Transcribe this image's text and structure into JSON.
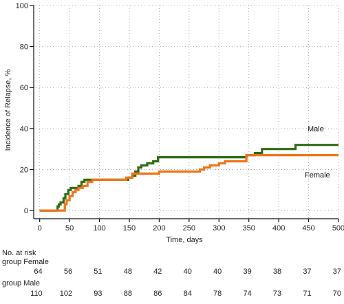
{
  "chart_data": {
    "type": "line",
    "xlabel": "Time, days",
    "ylabel": "Incidence of Relapse, %",
    "xlim": [
      -10,
      500
    ],
    "ylim": [
      -4,
      100
    ],
    "xticks": [
      0,
      50,
      100,
      150,
      200,
      250,
      300,
      350,
      400,
      450,
      500
    ],
    "yticks": [
      0,
      20,
      40,
      60,
      80,
      100
    ],
    "grid": true,
    "series": [
      {
        "name": "Male",
        "color": "#2e6b13",
        "step": true,
        "points": [
          [
            0,
            0
          ],
          [
            25,
            0
          ],
          [
            30,
            2
          ],
          [
            32,
            3
          ],
          [
            35,
            4
          ],
          [
            40,
            6
          ],
          [
            43,
            8
          ],
          [
            48,
            10
          ],
          [
            52,
            11
          ],
          [
            65,
            12
          ],
          [
            70,
            14
          ],
          [
            75,
            15
          ],
          [
            90,
            15
          ],
          [
            100,
            15
          ],
          [
            140,
            15
          ],
          [
            148,
            16
          ],
          [
            155,
            17
          ],
          [
            160,
            19
          ],
          [
            165,
            21
          ],
          [
            170,
            22
          ],
          [
            180,
            23
          ],
          [
            190,
            24
          ],
          [
            198,
            26
          ],
          [
            250,
            26
          ],
          [
            300,
            26
          ],
          [
            340,
            26
          ],
          [
            346,
            27
          ],
          [
            360,
            28
          ],
          [
            372,
            30
          ],
          [
            428,
            32
          ],
          [
            500,
            32
          ]
        ]
      },
      {
        "name": "Female",
        "color": "#f07418",
        "step": true,
        "points": [
          [
            0,
            0
          ],
          [
            38,
            0
          ],
          [
            42,
            3
          ],
          [
            45,
            5
          ],
          [
            50,
            7
          ],
          [
            55,
            9
          ],
          [
            60,
            10
          ],
          [
            65,
            11
          ],
          [
            72,
            12
          ],
          [
            80,
            14
          ],
          [
            88,
            15
          ],
          [
            130,
            15
          ],
          [
            145,
            16
          ],
          [
            155,
            18
          ],
          [
            195,
            18
          ],
          [
            200,
            19
          ],
          [
            260,
            19
          ],
          [
            268,
            20
          ],
          [
            275,
            21
          ],
          [
            285,
            22
          ],
          [
            300,
            23
          ],
          [
            310,
            24
          ],
          [
            342,
            24
          ],
          [
            346,
            27
          ],
          [
            500,
            27
          ]
        ]
      }
    ],
    "annotations": [
      {
        "text": "Male",
        "series": "Male"
      },
      {
        "text": "Female",
        "series": "Female"
      }
    ],
    "risk_table": {
      "header": "No. at risk",
      "groups": [
        {
          "label": "group Female",
          "values": [
            64,
            56,
            51,
            48,
            42,
            40,
            40,
            39,
            38,
            37,
            37
          ]
        },
        {
          "label": "group Male",
          "values": [
            110,
            102,
            93,
            88,
            86,
            84,
            78,
            74,
            73,
            71,
            70
          ]
        }
      ]
    }
  }
}
